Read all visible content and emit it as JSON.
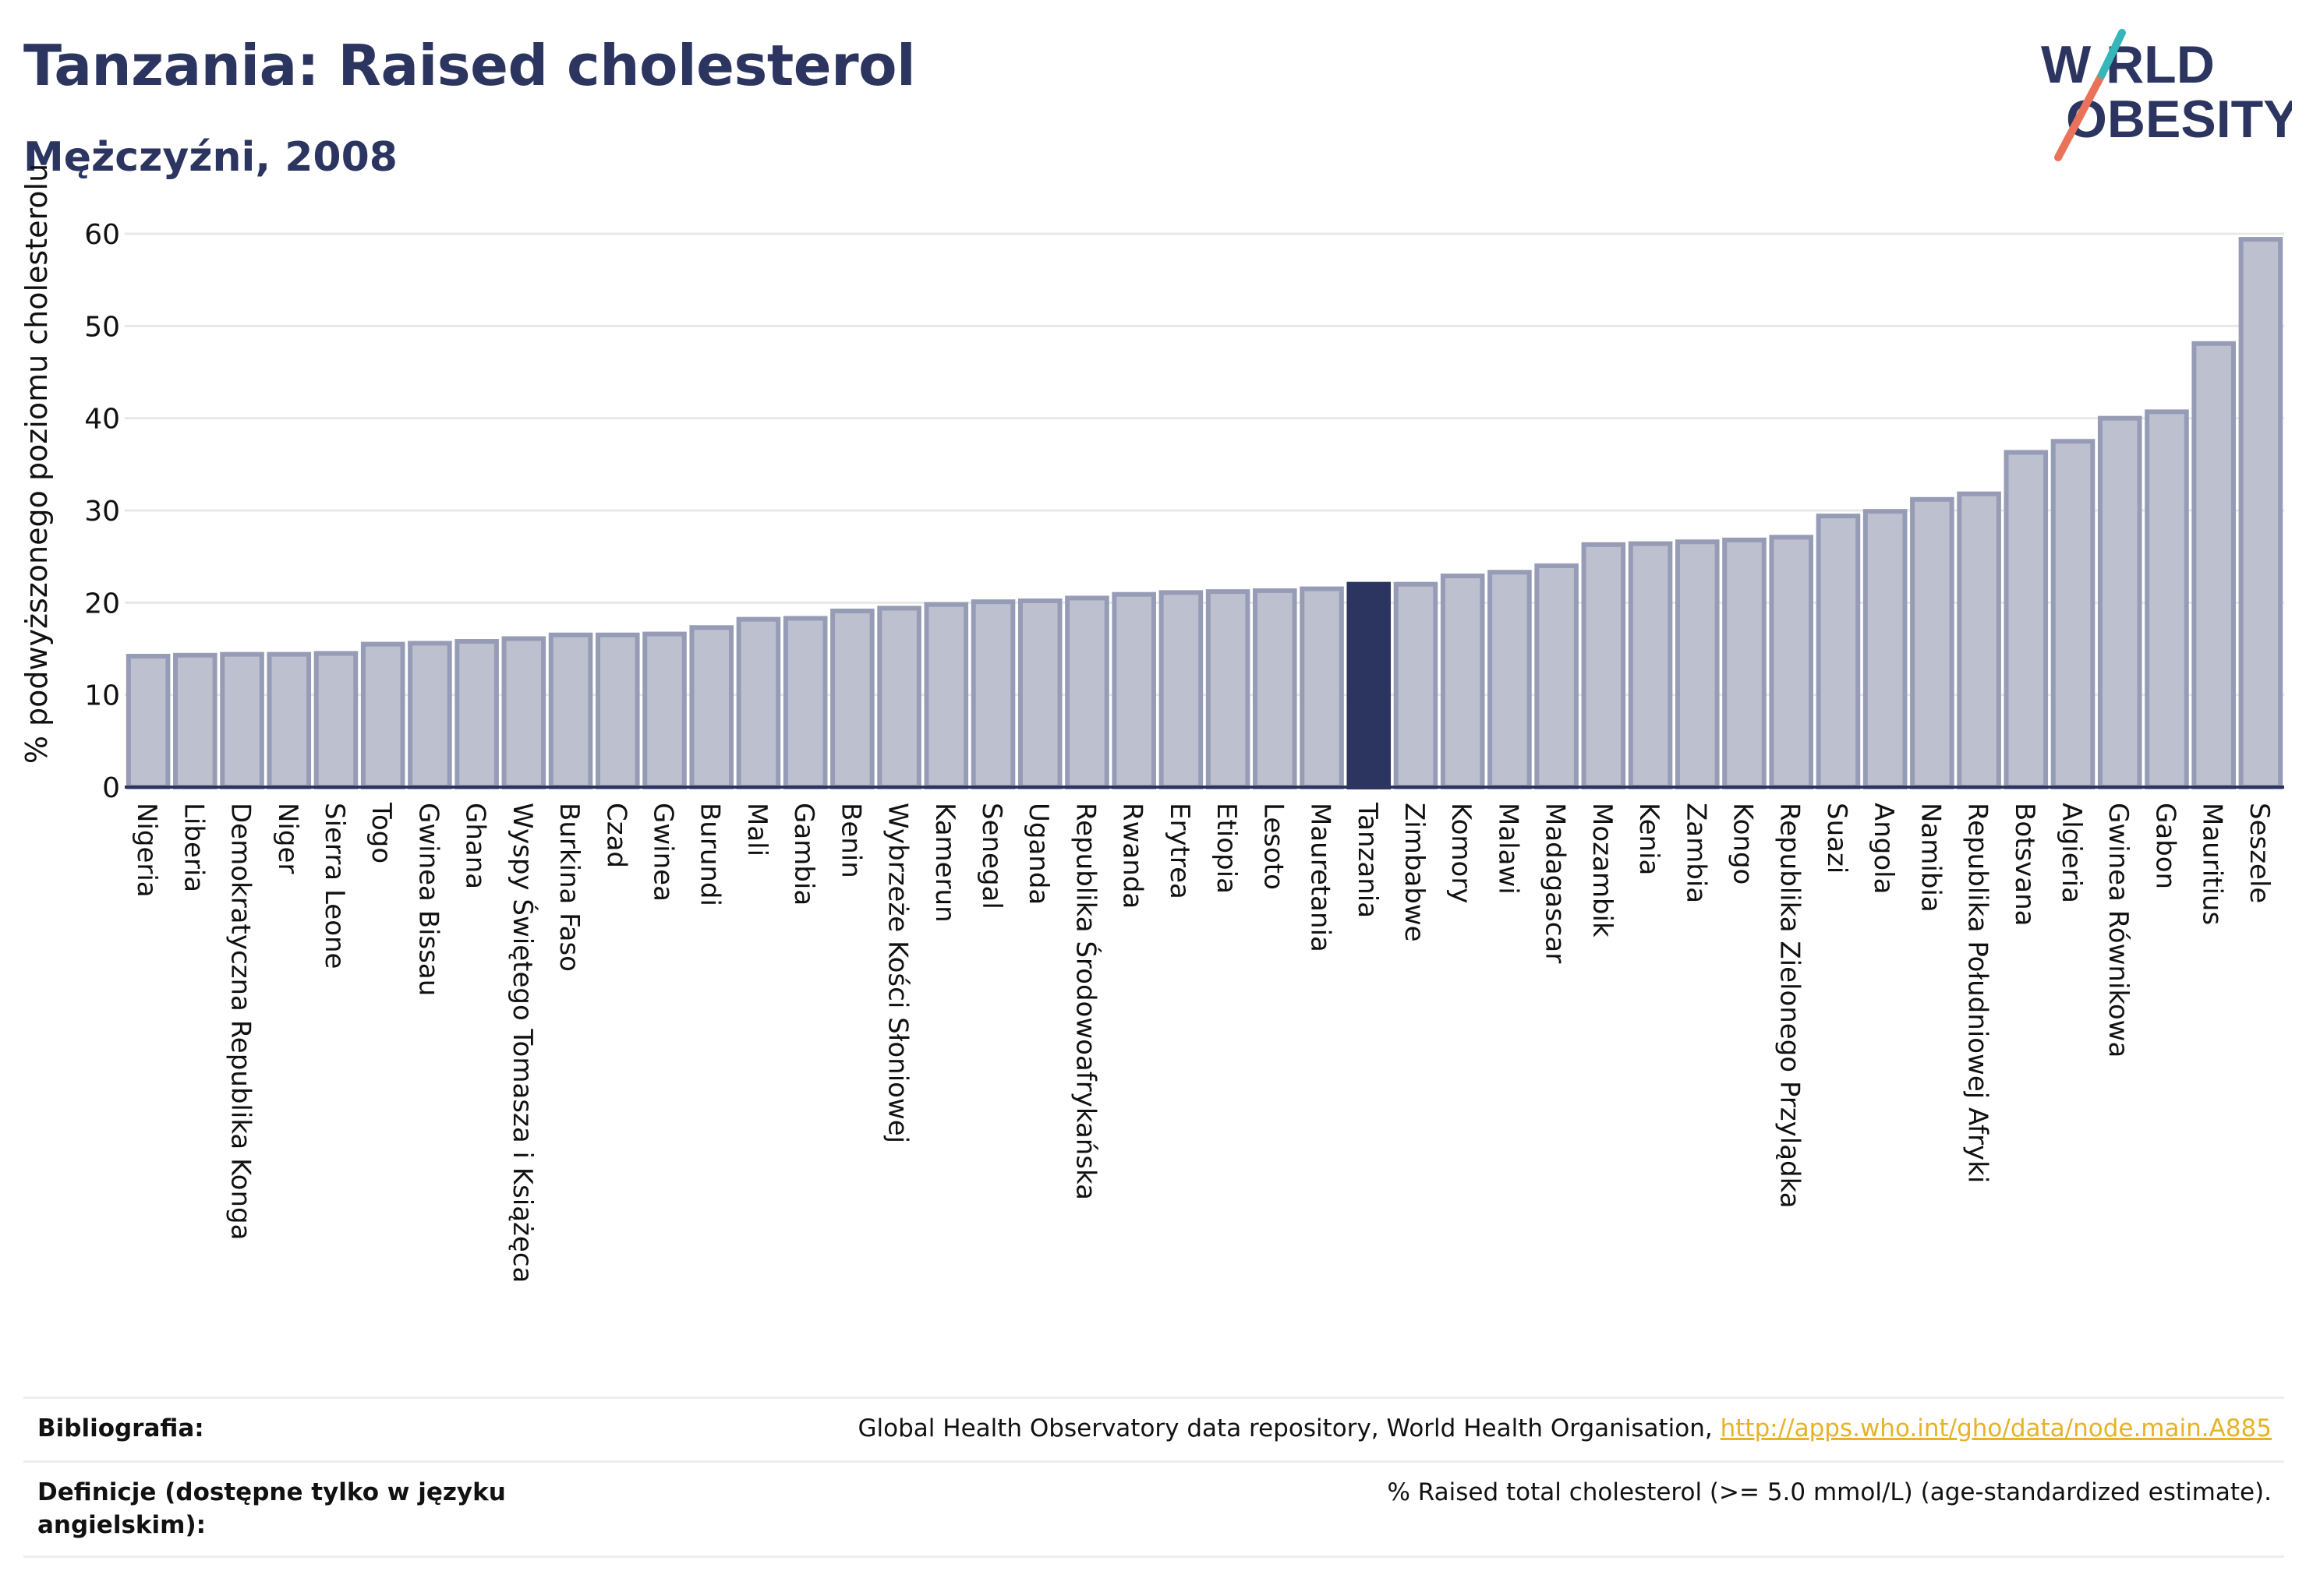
{
  "header": {
    "title": "Tanzania: Raised cholesterol",
    "subtitle": "Mężczyźni, 2008"
  },
  "logo": {
    "line1": "W RLD",
    "line2": "OBESITY",
    "text_color": "#2b3560",
    "slash_colors": [
      "#e8735a",
      "#35b6b9"
    ]
  },
  "colors": {
    "bar": "#bcc0cf",
    "bar_border": "#969cb5",
    "highlight": "#2b3560",
    "grid": "#e8e8e8",
    "link": "#e6b327"
  },
  "chart_data": {
    "type": "bar",
    "ylabel": "% podwyższonego poziomu cholesterolu",
    "ylim": [
      0,
      60
    ],
    "yticks": [
      0,
      10,
      20,
      30,
      40,
      50,
      60
    ],
    "grid": true,
    "highlight": "Tanzania",
    "categories": [
      "Nigeria",
      "Liberia",
      "Demokratyczna Republika Konga",
      "Niger",
      "Sierra Leone",
      "Togo",
      "Gwinea Bissau",
      "Ghana",
      "Wyspy Świętego Tomasza i Książęca",
      "Burkina Faso",
      "Czad",
      "Gwinea",
      "Burundi",
      "Mali",
      "Gambia",
      "Benin",
      "Wybrzeże Kości Słoniowej",
      "Kamerun",
      "Senegal",
      "Uganda",
      "Republika Środowoafrykańska",
      "Rwanda",
      "Erytrea",
      "Etiopia",
      "Lesoto",
      "Mauretania",
      "Tanzania",
      "Zimbabwe",
      "Komory",
      "Malawi",
      "Madagascar",
      "Mozambik",
      "Kenia",
      "Zambia",
      "Kongo",
      "Republika Zielonego Przylądka",
      "Suazi",
      "Angola",
      "Namibia",
      "Republika Południowej Afryki",
      "Botsvana",
      "Algieria",
      "Gwinea Równikowa",
      "Gabon",
      "Mauritius",
      "Seszele"
    ],
    "values": [
      14.2,
      14.3,
      14.4,
      14.4,
      14.5,
      15.5,
      15.6,
      15.8,
      16.1,
      16.5,
      16.5,
      16.6,
      17.3,
      18.2,
      18.3,
      19.1,
      19.4,
      19.8,
      20.1,
      20.2,
      20.5,
      20.9,
      21.1,
      21.2,
      21.3,
      21.5,
      22.0,
      22.0,
      22.9,
      23.3,
      24.0,
      26.3,
      26.4,
      26.6,
      26.8,
      27.1,
      29.4,
      29.9,
      31.2,
      31.8,
      36.3,
      37.5,
      40.0,
      40.7,
      48.1,
      59.4
    ]
  },
  "footer": {
    "bibliography_label": "Bibliografia:",
    "bibliography_text": "Global Health Observatory data repository, World Health Organisation, ",
    "bibliography_link": "http://apps.who.int/gho/data/node.main.A885",
    "definitions_label_line1": "Definicje (dostępne tylko w języku",
    "definitions_label_line2": "angielskim):",
    "definitions_text": "% Raised total cholesterol (>= 5.0 mmol/L) (age-standardized estimate)."
  }
}
